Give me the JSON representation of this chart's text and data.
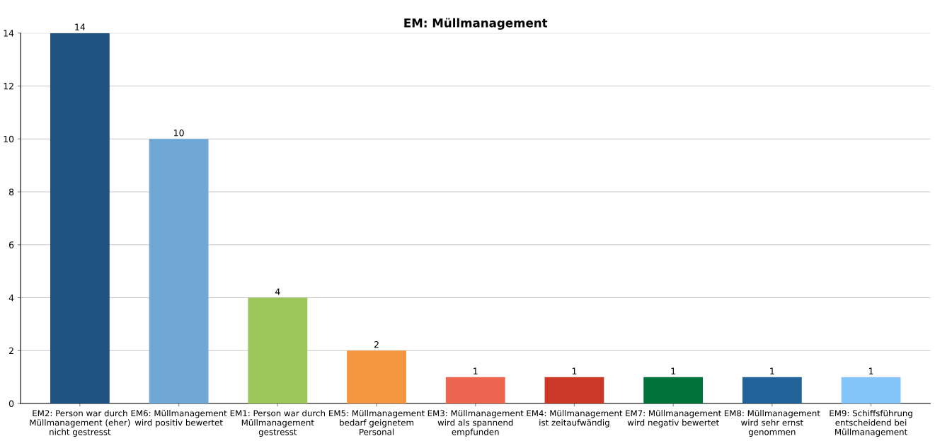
{
  "chart_data": {
    "type": "bar",
    "title": "EM: Müllmanagement",
    "categories": [
      "EM2: Person war durch\nMüllmanagement (eher)\nnicht gestresst",
      "EM6: Müllmanagement\nwird positiv bewertet",
      "EM1: Person war durch\nMüllmanagement\ngestresst",
      "EM5: Müllmanagement\nbedarf geignetem\nPersonal",
      "EM3: Müllmanagement\nwird als spannend\nempfunden",
      "EM4: Müllmanagement\nist zeitaufwändig",
      "EM7: Müllmanagement\nwird negativ bewertet",
      "EM8: Müllmanagement\nwird sehr ernst\ngenommen",
      "EM9: Schiffsführung\nentscheidend bei\nMüllmanagement"
    ],
    "values": [
      14,
      10,
      4,
      2,
      1,
      1,
      1,
      1,
      1
    ],
    "colors": [
      "#1f5280",
      "#6fa7d5",
      "#9bc65a",
      "#f4963f",
      "#ee6550",
      "#cc3828",
      "#00733a",
      "#216399",
      "#86c5fa"
    ],
    "ylim": [
      0,
      14
    ],
    "yticks": [
      0,
      2,
      4,
      6,
      8,
      10,
      12,
      14
    ],
    "grid": "y",
    "data_labels": true
  }
}
